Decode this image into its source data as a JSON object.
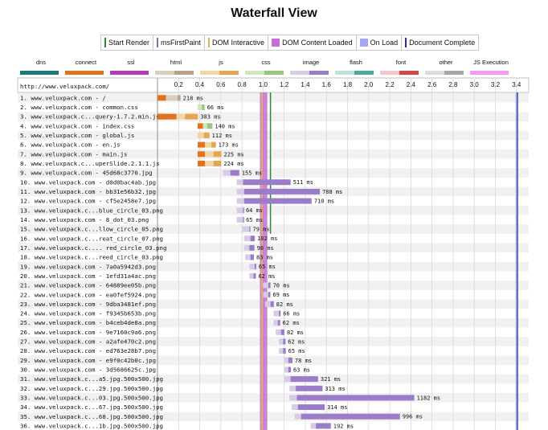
{
  "title": "Waterfall View",
  "legend_events": [
    {
      "label": "Start Render",
      "color": "#2e8b2e",
      "kind": "line"
    },
    {
      "label": "msFirstPaint",
      "color": "#6b7fa3",
      "kind": "line"
    },
    {
      "label": "DOM Interactive",
      "color": "#e0b060",
      "kind": "line"
    },
    {
      "label": "DOM Content Loaded",
      "color": "#c36fd3",
      "kind": "box"
    },
    {
      "label": "On Load",
      "color": "#a6a8f0",
      "kind": "box"
    },
    {
      "label": "Document Complete",
      "color": "#2a2fa0",
      "kind": "line"
    }
  ],
  "resource_types": [
    {
      "label": "dns",
      "c1": "#1d7a7a",
      "c2": "#1d7a7a"
    },
    {
      "label": "connect",
      "c1": "#e0731b",
      "c2": "#e0731b"
    },
    {
      "label": "ssl",
      "c1": "#b23cb0",
      "c2": "#b23cb0"
    },
    {
      "label": "html",
      "c1": "#d9cfc0",
      "c2": "#b7a48a"
    },
    {
      "label": "js",
      "c1": "#f2d6a6",
      "c2": "#e4a650"
    },
    {
      "label": "css",
      "c1": "#cfe6bf",
      "c2": "#96c77d"
    },
    {
      "label": "image",
      "c1": "#d7cbe6",
      "c2": "#9a7cc8"
    },
    {
      "label": "flash",
      "c1": "#bfe0dc",
      "c2": "#4fa7a0"
    },
    {
      "label": "font",
      "c1": "#f0c8c8",
      "c2": "#d64545"
    },
    {
      "label": "other",
      "c1": "#dcdcdc",
      "c2": "#a8a8a8"
    },
    {
      "label": "JS Execution",
      "c1": "#f39bf5",
      "c2": "#f39bf5"
    }
  ],
  "chart_data": {
    "type": "waterfall",
    "url_header": "http://www.veluxpack.com/",
    "xlim": [
      0,
      3.5
    ],
    "xticks": [
      0.2,
      0.4,
      0.6,
      0.8,
      1.0,
      1.2,
      1.4,
      1.6,
      1.8,
      2.0,
      2.2,
      2.4,
      2.6,
      2.8,
      3.0,
      3.2,
      3.4
    ],
    "xtick_labels": [
      "0.2",
      "0.4",
      "0.6",
      "0.8",
      "1.0",
      "1.2",
      "1.4",
      "1.6",
      "1.8",
      "2.0",
      "2.2",
      "2.4",
      "2.6",
      "2.8",
      "3.0",
      "3.2",
      "3.4"
    ],
    "events": {
      "start_render": 1.07,
      "ms_first_paint": 1.0,
      "dom_interactive": 0.99,
      "dom_content_loaded": [
        0.97,
        1.04
      ],
      "on_load": 3.4,
      "document_complete": 3.41
    },
    "requests": [
      {
        "label": "1. www.veluxpack.com - /",
        "type": "html",
        "start": 0.0,
        "connect": 0.08,
        "wait": 0.11,
        "dur_label": "218 ms"
      },
      {
        "label": "2. www.veluxpack.com - common.css",
        "type": "css",
        "start": 0.38,
        "connect": 0,
        "wait": 0.04,
        "dur_label": "66 ms"
      },
      {
        "label": "3. www.veluxpack.c...query-1.7.2.min.js",
        "type": "js",
        "start": 0.0,
        "connect": 0.07,
        "wait": 0.08,
        "dur_label": "383 ms",
        "pre": 0.18
      },
      {
        "label": "4. www.veluxpack.com - index.css",
        "type": "css",
        "start": 0.38,
        "connect": 0.05,
        "wait": 0.04,
        "dur_label": "140 ms"
      },
      {
        "label": "5. www.veluxpack.com - global.js",
        "type": "js",
        "start": 0.38,
        "connect": 0,
        "wait": 0.06,
        "dur_label": "112 ms"
      },
      {
        "label": "6. www.veluxpack.com - en.js",
        "type": "js",
        "start": 0.38,
        "connect": 0.07,
        "wait": 0.06,
        "dur_label": "173 ms"
      },
      {
        "label": "7. www.veluxpack.com - main.js",
        "type": "js",
        "start": 0.38,
        "connect": 0.07,
        "wait": 0.08,
        "dur_label": "225 ms"
      },
      {
        "label": "8. www.veluxpack.c...uperSlide.2.1.1.js",
        "type": "js",
        "start": 0.38,
        "connect": 0.07,
        "wait": 0.08,
        "dur_label": "224 ms"
      },
      {
        "label": "9. www.veluxpack.com - 45d68c3770.jpg",
        "type": "image",
        "start": 0.62,
        "connect": 0,
        "wait": 0.07,
        "dur_label": "155 ms"
      },
      {
        "label": "10. www.veluxpack.com - d0d0bac4ab.jpg",
        "type": "image",
        "start": 0.75,
        "connect": 0,
        "wait": 0.06,
        "dur_label": "511 ms"
      },
      {
        "label": "11. www.veluxpack.com - bb31e56b32.jpg",
        "type": "image",
        "start": 0.75,
        "connect": 0,
        "wait": 0.07,
        "dur_label": "788 ms"
      },
      {
        "label": "12. www.veluxpack.com - cf5e2458e7.jpg",
        "type": "image",
        "start": 0.75,
        "connect": 0,
        "wait": 0.07,
        "dur_label": "710 ms"
      },
      {
        "label": "13. www.veluxpack.c...blue_circle_03.png",
        "type": "image",
        "start": 0.75,
        "connect": 0,
        "wait": 0.06,
        "dur_label": "64 ms"
      },
      {
        "label": "14. www.veluxpack.com - 8_dot_03.png",
        "type": "image",
        "start": 0.75,
        "connect": 0,
        "wait": 0.06,
        "dur_label": "65 ms"
      },
      {
        "label": "15. www.veluxpack.c...llow_circle_05.png",
        "type": "image",
        "start": 0.8,
        "connect": 0,
        "wait": 0.07,
        "dur_label": "79 ms"
      },
      {
        "label": "16. www.veluxpack.c...reat_circle_07.png",
        "type": "image",
        "start": 0.82,
        "connect": 0,
        "wait": 0.06,
        "dur_label": "102 ms"
      },
      {
        "label": "17. www.veluxpack.c.... red_circle_03.png",
        "type": "image",
        "start": 0.82,
        "connect": 0,
        "wait": 0.05,
        "dur_label": "98 ms"
      },
      {
        "label": "18. www.veluxpack.c...reed_circle_03.png",
        "type": "image",
        "start": 0.83,
        "connect": 0,
        "wait": 0.05,
        "dur_label": "83 ms"
      },
      {
        "label": "19. www.veluxpack.com - 7a0a5942d3.png",
        "type": "image",
        "start": 0.87,
        "connect": 0,
        "wait": 0.05,
        "dur_label": "65 ms"
      },
      {
        "label": "20. www.veluxpack.com - 1efd31a4ac.png",
        "type": "image",
        "start": 0.87,
        "connect": 0,
        "wait": 0.04,
        "dur_label": "62 ms"
      },
      {
        "label": "21. www.veluxpack.com - 64889ee05b.png",
        "type": "image",
        "start": 1.0,
        "connect": 0,
        "wait": 0.05,
        "dur_label": "70 ms"
      },
      {
        "label": "22. www.veluxpack.com - ea0fef5924.png",
        "type": "image",
        "start": 1.0,
        "connect": 0,
        "wait": 0.05,
        "dur_label": "69 ms"
      },
      {
        "label": "23. www.veluxpack.com - 9dba3481ef.png",
        "type": "image",
        "start": 1.02,
        "connect": 0,
        "wait": 0.05,
        "dur_label": "82 ms"
      },
      {
        "label": "24. www.veluxpack.com - f9345b653b.png",
        "type": "image",
        "start": 1.1,
        "connect": 0,
        "wait": 0.05,
        "dur_label": "66 ms"
      },
      {
        "label": "25. www.veluxpack.com - b4ceb4de8a.png",
        "type": "image",
        "start": 1.1,
        "connect": 0,
        "wait": 0.04,
        "dur_label": "62 ms"
      },
      {
        "label": "26. www.veluxpack.com - 9e7160c9a6.png",
        "type": "image",
        "start": 1.12,
        "connect": 0,
        "wait": 0.05,
        "dur_label": "82 ms"
      },
      {
        "label": "27. www.veluxpack.com - a2afe470c2.png",
        "type": "image",
        "start": 1.15,
        "connect": 0,
        "wait": 0.04,
        "dur_label": "62 ms"
      },
      {
        "label": "28. www.veluxpack.com - ed763e28b7.png",
        "type": "image",
        "start": 1.15,
        "connect": 0,
        "wait": 0.04,
        "dur_label": "65 ms"
      },
      {
        "label": "29. www.veluxpack.com - e9f0c42b0c.jpg",
        "type": "image",
        "start": 1.2,
        "connect": 0,
        "wait": 0.04,
        "dur_label": "78 ms"
      },
      {
        "label": "30. www.veluxpack.com - 3d5686625c.jpg",
        "type": "image",
        "start": 1.2,
        "connect": 0,
        "wait": 0.04,
        "dur_label": "63 ms"
      },
      {
        "label": "31. www.veluxpack.c...a5.jpg.500x500.jpg",
        "type": "image",
        "start": 1.2,
        "connect": 0,
        "wait": 0.06,
        "dur_label": "321 ms"
      },
      {
        "label": "32. www.veluxpack.c...29.jpg.500x500.jpg",
        "type": "image",
        "start": 1.25,
        "connect": 0,
        "wait": 0.06,
        "dur_label": "313 ms"
      },
      {
        "label": "33. www.veluxpack.c...03.jpg.500x500.jpg",
        "type": "image",
        "start": 1.25,
        "connect": 0,
        "wait": 0.07,
        "dur_label": "1182 ms"
      },
      {
        "label": "34. www.veluxpack.c...67.jpg.500x500.jpg",
        "type": "image",
        "start": 1.27,
        "connect": 0,
        "wait": 0.06,
        "dur_label": "314 ms"
      },
      {
        "label": "35. www.veluxpack.c...68.jpg.500x500.jpg",
        "type": "image",
        "start": 1.3,
        "connect": 0,
        "wait": 0.06,
        "dur_label": "996 ms"
      },
      {
        "label": "36. www.veluxpack.c...1b.jpg.500x500.jpg",
        "type": "image",
        "start": 1.45,
        "connect": 0,
        "wait": 0.05,
        "dur_label": "192 ms"
      }
    ]
  }
}
